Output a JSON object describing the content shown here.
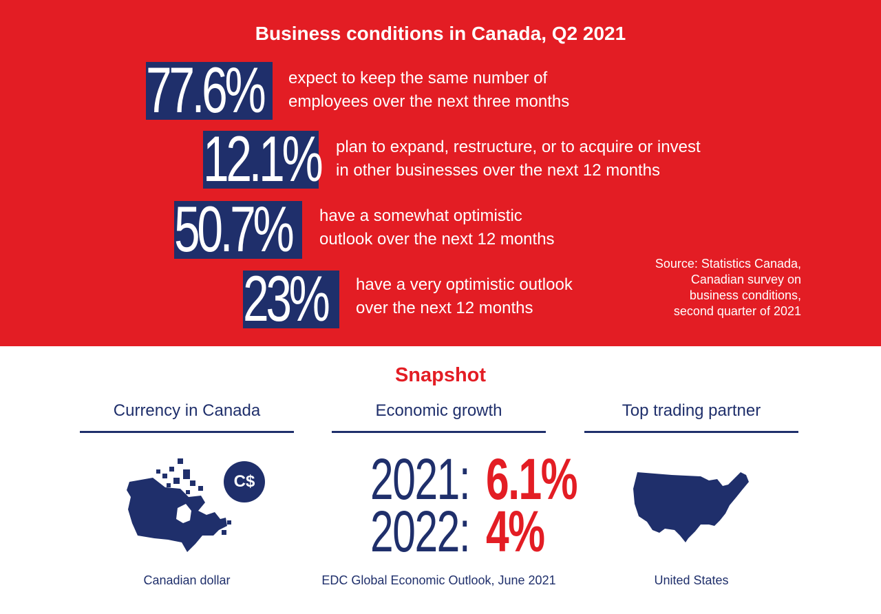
{
  "header": {
    "title": "Business conditions in Canada, Q2 2021"
  },
  "stats": [
    {
      "value": "77.6%",
      "line1": "expect to keep the same number of",
      "line2": "employees over the next three months"
    },
    {
      "value": "12.1%",
      "line1": "plan to expand, restructure, or to acquire or invest",
      "line2": "in other businesses over the next 12 months"
    },
    {
      "value": "50.7%",
      "line1": "have a somewhat optimistic",
      "line2": "outlook over the next 12 months"
    },
    {
      "value": "23%",
      "line1": "have a very optimistic outlook",
      "line2": "over the next 12 months"
    }
  ],
  "source": {
    "line1": "Source: Statistics Canada,",
    "line2": "Canadian survey on",
    "line3": "business conditions,",
    "line4": "second quarter of 2021"
  },
  "snapshot": {
    "title": "Snapshot",
    "currency": {
      "heading": "Currency in Canada",
      "badge": "C$",
      "caption": "Canadian dollar",
      "icon": "canada-map-icon"
    },
    "growth": {
      "heading": "Economic growth",
      "rows": [
        {
          "year": "2021:",
          "value": "6.1%"
        },
        {
          "year": "2022:",
          "value": "4%"
        }
      ],
      "caption": "EDC Global Economic Outlook, June 2021"
    },
    "partner": {
      "heading": "Top trading partner",
      "caption": "United States",
      "icon": "usa-map-icon"
    }
  },
  "colors": {
    "red": "#e31d24",
    "navy": "#1f2f6b",
    "white": "#ffffff"
  }
}
